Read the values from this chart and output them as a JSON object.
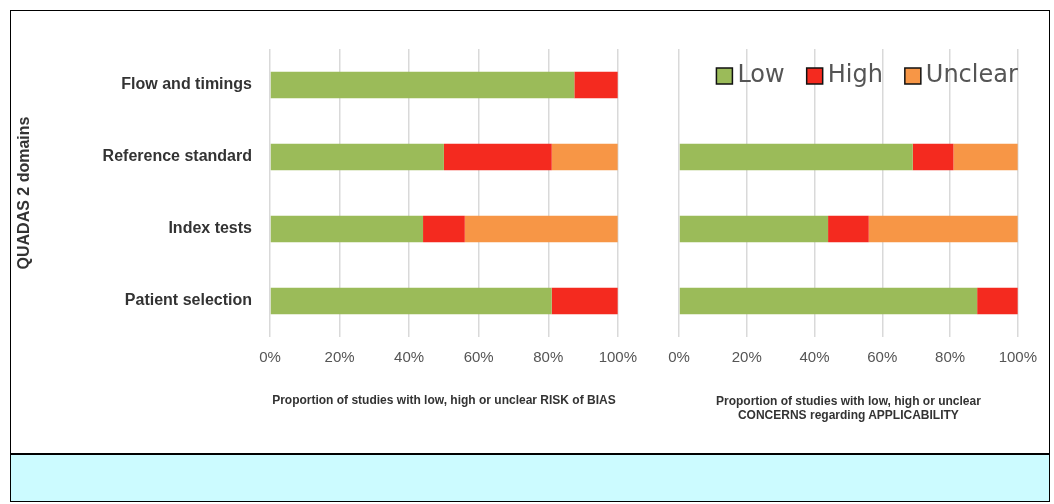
{
  "chart_data": [
    {
      "type": "bar",
      "orientation": "horizontal",
      "stacked": true,
      "ylabel": "QUADAS 2 domains",
      "xlabel": "Proportion of studies with low, high or unclear RISK of BIAS",
      "categories": [
        "Flow and timings",
        "Reference standard",
        "Index tests",
        "Patient selection"
      ],
      "series": [
        {
          "color": "#9bbb59",
          "values": [
            87.5,
            50,
            44,
            81
          ]
        },
        {
          "color": "#f42a1f",
          "values": [
            12.5,
            31,
            12,
            19
          ]
        },
        {
          "color": "#f79646",
          "values": [
            0,
            19,
            44,
            0
          ]
        }
      ],
      "xlim": [
        0,
        100
      ],
      "xticks": [
        {
          "value": 0,
          "label": "0%"
        },
        {
          "value": 20,
          "label": "20%"
        },
        {
          "value": 40,
          "label": "40%"
        },
        {
          "value": 60,
          "label": "60%"
        },
        {
          "value": 80,
          "label": "80%"
        },
        {
          "value": 100,
          "label": "100%"
        }
      ],
      "grid": "x",
      "legend": false
    },
    {
      "type": "bar",
      "orientation": "horizontal",
      "stacked": true,
      "xlabel": "Proportion of studies with low, high or unclear\nCONCERNS regarding APPLICABILITY",
      "categories": [
        null,
        null,
        null,
        null
      ],
      "series": [
        {
          "name": "Low",
          "color": "#9bbb59",
          "values": [
            null,
            69,
            44,
            88
          ]
        },
        {
          "name": "High",
          "color": "#f42a1f",
          "values": [
            null,
            12,
            12,
            12
          ]
        },
        {
          "name": "Unclear",
          "color": "#f79646",
          "values": [
            null,
            19,
            44,
            0
          ]
        }
      ],
      "xlim": [
        0,
        100
      ],
      "xticks": [
        {
          "value": 0,
          "label": "0%"
        },
        {
          "value": 20,
          "label": "20%"
        },
        {
          "value": 40,
          "label": "40%"
        },
        {
          "value": 60,
          "label": "60%"
        },
        {
          "value": 80,
          "label": "80%"
        },
        {
          "value": 100,
          "label": "100%"
        }
      ],
      "grid": "x",
      "legend": "top right",
      "tick_labels": "x"
    }
  ]
}
